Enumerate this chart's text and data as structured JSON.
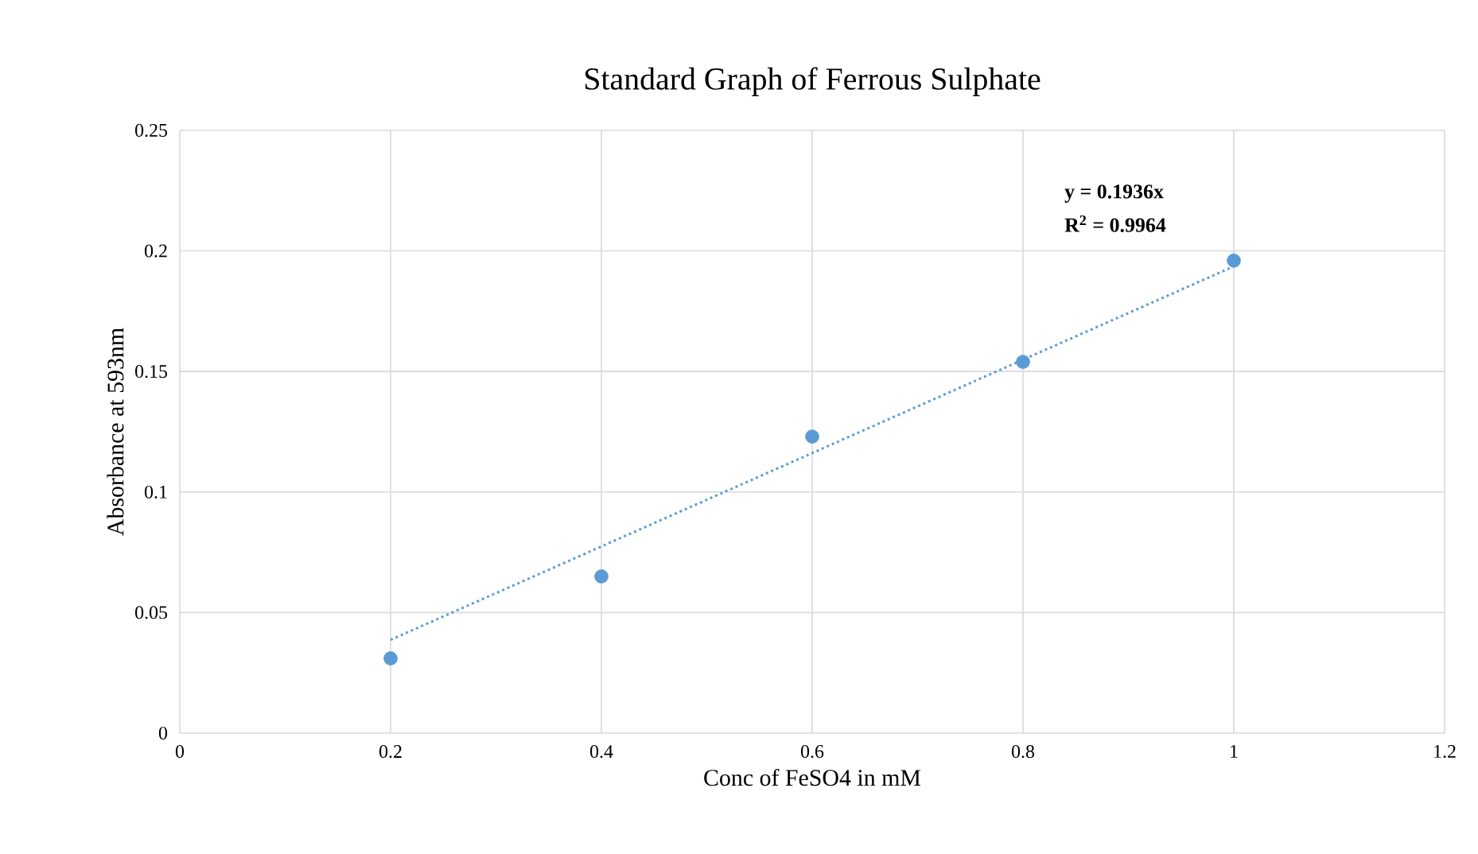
{
  "chart_data": {
    "type": "scatter",
    "title": "Standard  Graph  of  Ferrous  Sulphate",
    "xlabel": "Conc of FeSO4 in mM",
    "ylabel": "Absorbance at 593nm",
    "x": [
      0.2,
      0.4,
      0.6,
      0.8,
      1
    ],
    "series": [
      {
        "color": "#5b9bd5",
        "marker": "circle",
        "values": [
          0.031,
          0.065,
          0.123,
          0.154,
          0.196
        ]
      },
      {
        "type": "line",
        "color": "#5b9bd5",
        "marker": "none",
        "line_style": "dotted",
        "x": [
          0.2,
          1
        ],
        "values": [
          0.0387,
          0.1936
        ]
      }
    ],
    "annotations": [
      "y = 0.1936x",
      "R$^{2}$ = 0.9964"
    ],
    "xlim": [
      0,
      1.2
    ],
    "ylim": [
      0,
      0.25
    ],
    "xticks": [
      0,
      0.2,
      0.4,
      0.6,
      0.8,
      1,
      1.2
    ],
    "yticks": [
      0,
      0.05,
      0.1,
      0.15,
      0.2,
      0.25
    ],
    "grid": true
  }
}
